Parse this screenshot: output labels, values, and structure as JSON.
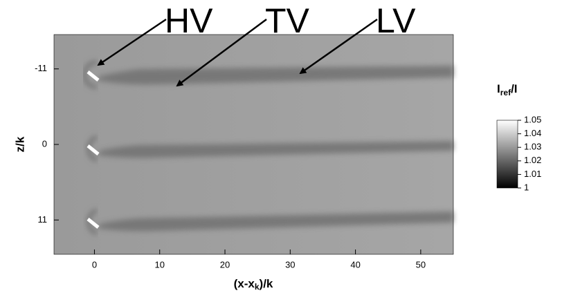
{
  "chart_data": {
    "type": "image",
    "x_label": [
      "(x-x",
      "k",
      ")/k"
    ],
    "y_label": "z/k",
    "xlim": [
      -6.2,
      55
    ],
    "xticks": [
      0,
      10,
      20,
      30,
      40,
      50
    ],
    "ylim": [
      -16,
      16
    ],
    "y_inverted": true,
    "yticks": [
      -11,
      0,
      11
    ],
    "annotations": [
      {
        "text": "HV"
      },
      {
        "text": "TV"
      },
      {
        "text": "LV"
      }
    ],
    "colorbar": {
      "title": [
        "I",
        "ref",
        "/I"
      ],
      "clim": [
        1,
        1.05
      ],
      "ticks": [
        1,
        1.01,
        1.02,
        1.03,
        1.04,
        1.05
      ]
    }
  }
}
